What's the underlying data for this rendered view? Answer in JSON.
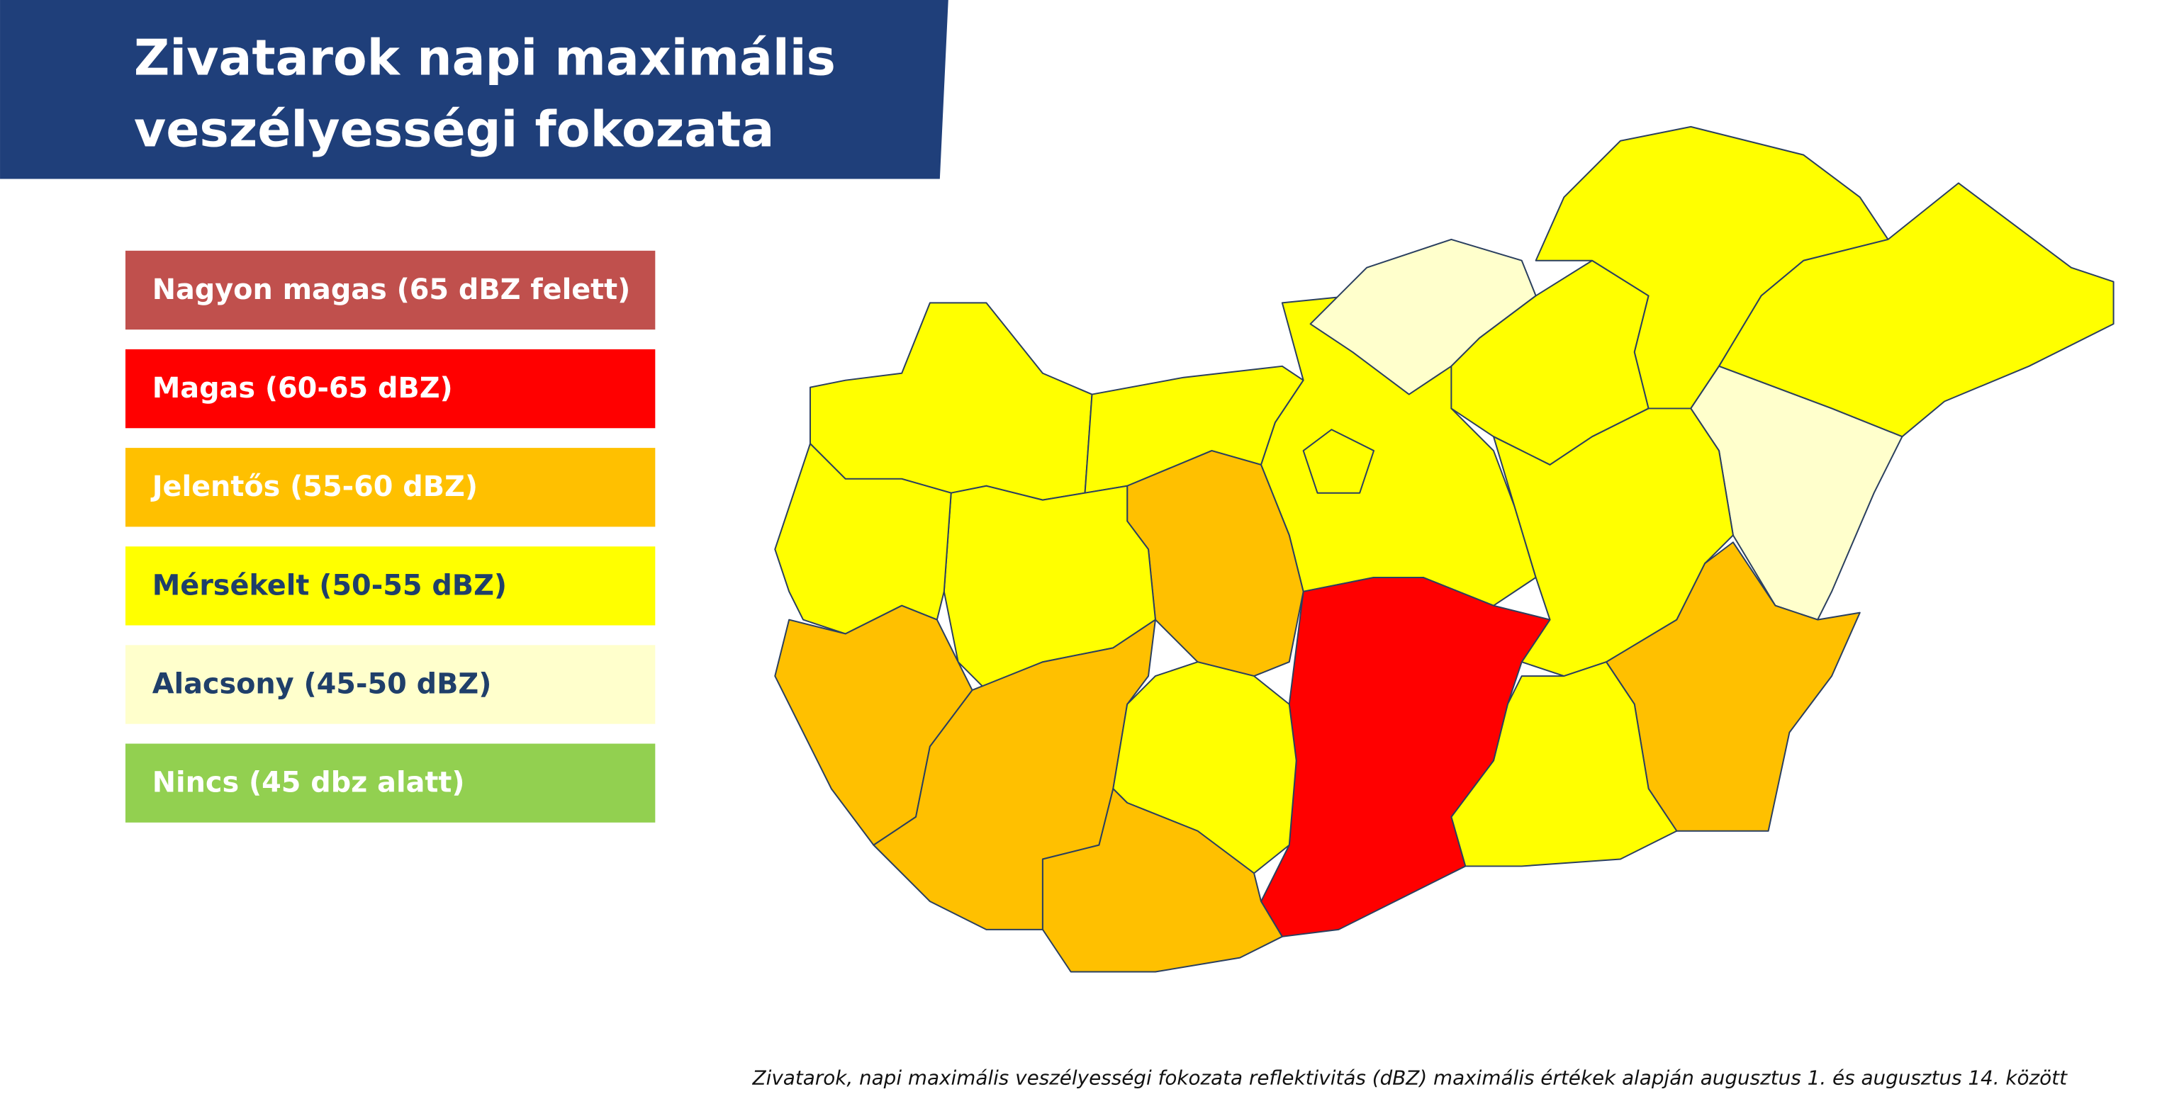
{
  "header": {
    "title_lines": [
      "Zivatarok napi maximális",
      "veszélyességi fokozata"
    ]
  },
  "legend": [
    {
      "label": "Nagyon magas (65 dBZ felett)",
      "color": "#c0504d",
      "text_color": "#ffffff"
    },
    {
      "label": "Magas (60-65 dBZ)",
      "color": "#ff0000",
      "text_color": "#ffffff"
    },
    {
      "label": "Jelentős (55-60 dBZ)",
      "color": "#ffc000",
      "text_color": "#ffffff"
    },
    {
      "label": "Mérsékelt (50-55 dBZ)",
      "color": "#ffff00",
      "text_color": "#1f3f6a"
    },
    {
      "label": "Alacsony (45-50 dBZ)",
      "color": "#ffffcc",
      "text_color": "#1f3f6a"
    },
    {
      "label": "Nincs (45 dbz alatt)",
      "color": "#92d050",
      "text_color": "#ffffff"
    }
  ],
  "footnote": "Zivatarok, napi maximális veszélyességi fokozata reflektivitás (dBZ) maximális értékek alapján augusztus 1. és augusztus 14. között"
}
